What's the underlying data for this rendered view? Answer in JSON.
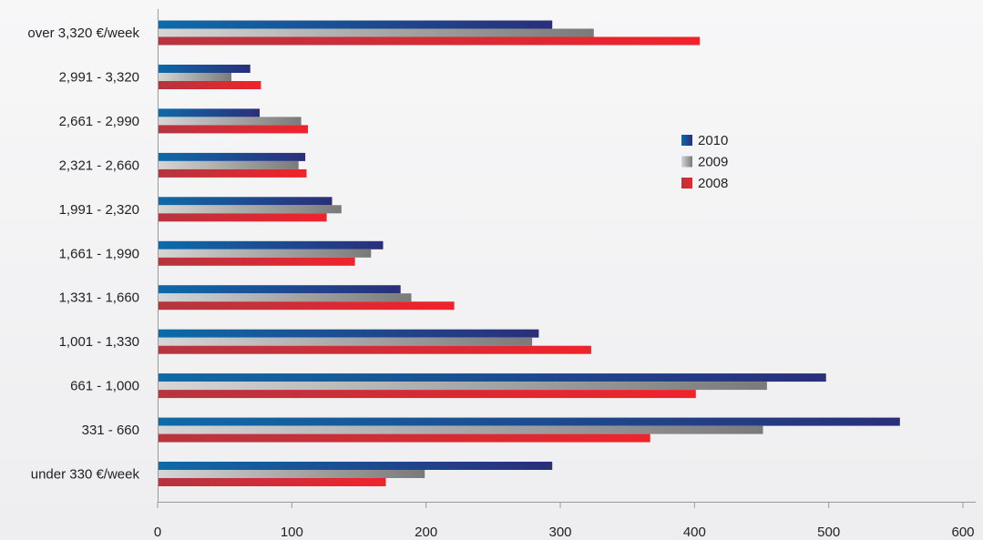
{
  "chart_data": {
    "type": "bar",
    "orientation": "horizontal",
    "categories": [
      "over 3,320 €/week",
      "2,991 - 3,320",
      "2,661 - 2,990",
      "2,321 - 2,660",
      "1,991 - 2,320",
      "1,661 - 1,990",
      "1,331 - 1,660",
      "1,001 - 1,330",
      "661 - 1,000",
      "331 - 660",
      "under 330 €/week"
    ],
    "series": [
      {
        "name": "2010",
        "color": "#1f3f8f",
        "values": [
          294,
          69,
          76,
          110,
          130,
          168,
          181,
          284,
          498,
          553,
          294
        ]
      },
      {
        "name": "2009",
        "color": "#8a8a8a",
        "values": [
          325,
          55,
          107,
          105,
          137,
          159,
          189,
          279,
          454,
          451,
          199
        ]
      },
      {
        "name": "2008",
        "color": "#e8262d",
        "values": [
          404,
          77,
          112,
          111,
          126,
          147,
          221,
          323,
          401,
          367,
          170
        ]
      }
    ],
    "xlim": [
      0,
      600
    ],
    "xticks": [
      0,
      100,
      200,
      300,
      400,
      500,
      600
    ],
    "legend_position": "right"
  }
}
